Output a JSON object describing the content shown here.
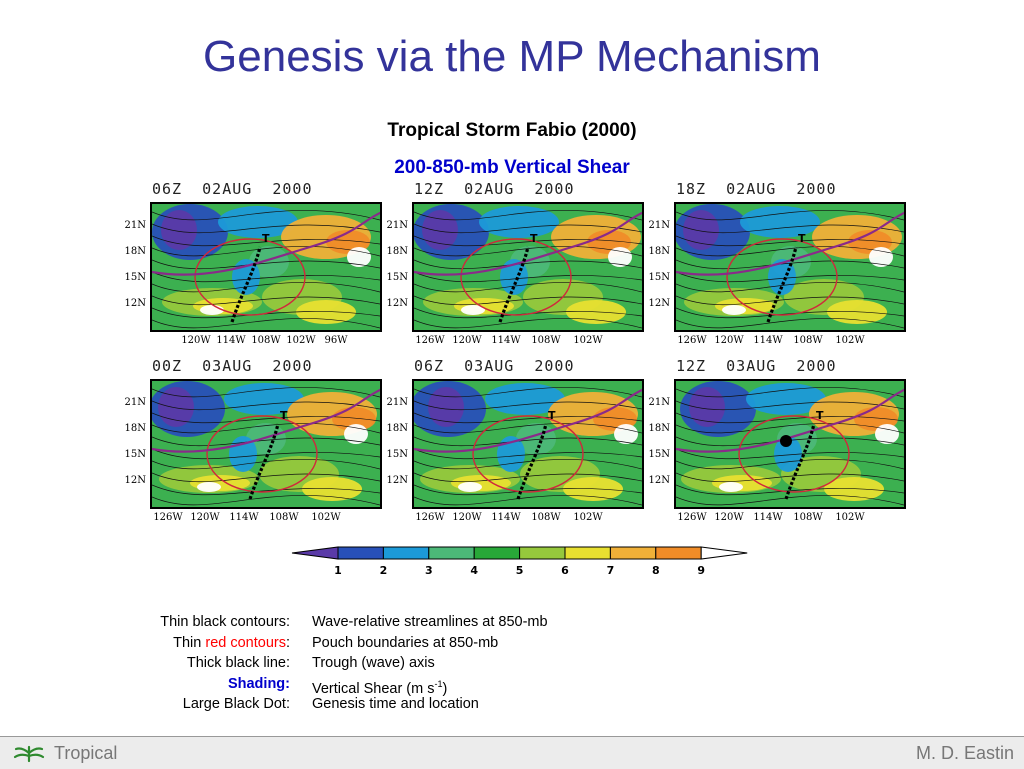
{
  "slide": {
    "title": "Genesis via the MP Mechanism",
    "subtitle": "Tropical Storm Fabio (2000)",
    "subtitle2": "200-850-mb Vertical Shear",
    "subtitle2_color": "#0000cc"
  },
  "panels": [
    {
      "title": "06Z  02AUG  2000",
      "lat": [
        "21N",
        "18N",
        "15N",
        "12N"
      ],
      "lon": [
        "120W",
        "114W",
        "108W",
        "102W",
        "96W"
      ],
      "trough": "T"
    },
    {
      "title": "12Z  02AUG  2000",
      "lat": [
        "21N",
        "18N",
        "15N",
        "12N"
      ],
      "lon": [
        "126W",
        "120W",
        "114W",
        "108W",
        "102W"
      ],
      "trough": "T"
    },
    {
      "title": "18Z  02AUG  2000",
      "lat": [
        "21N",
        "18N",
        "15N",
        "12N"
      ],
      "lon": [
        "126W",
        "120W",
        "114W",
        "108W",
        "102W"
      ],
      "trough": "T"
    },
    {
      "title": "00Z  03AUG  2000",
      "lat": [
        "21N",
        "18N",
        "15N",
        "12N"
      ],
      "lon": [
        "126W",
        "120W",
        "114W",
        "108W",
        "102W"
      ],
      "trough": "T"
    },
    {
      "title": "06Z  03AUG  2000",
      "lat": [
        "21N",
        "18N",
        "15N",
        "12N"
      ],
      "lon": [
        "126W",
        "120W",
        "114W",
        "108W",
        "102W"
      ],
      "trough": "T"
    },
    {
      "title": "12Z  03AUG  2000",
      "lat": [
        "21N",
        "18N",
        "15N",
        "12N"
      ],
      "lon": [
        "126W",
        "120W",
        "114W",
        "108W",
        "102W"
      ],
      "trough": "T"
    }
  ],
  "colorbar": {
    "ticks": [
      "1",
      "2",
      "3",
      "4",
      "5",
      "6",
      "7",
      "8",
      "9"
    ],
    "colors": [
      "#5a3aa8",
      "#2850b8",
      "#1c9ad8",
      "#4cb878",
      "#28a838",
      "#96c83c",
      "#e8e030",
      "#f0b038",
      "#f08c28",
      "#ffffff"
    ]
  },
  "legend": [
    {
      "key": "Thin black contours:",
      "value": "Wave-relative streamlines at 850-mb"
    },
    {
      "key_pre": "Thin ",
      "key_red": "red contours",
      "key_post": ":",
      "value": "Pouch boundaries at 850-mb"
    },
    {
      "key": "Thick black line:",
      "value": "Trough (wave) axis"
    },
    {
      "key_blue": "Shading:",
      "value_pre": "Vertical Shear (m s",
      "value_sup": "-1",
      "value_post": ")"
    },
    {
      "key": "Large Black Dot:",
      "value": "Genesis time and location"
    }
  ],
  "footer": {
    "left": "Tropical",
    "right": "M. D. Eastin",
    "logo_icon": "palm-leaf-icon"
  }
}
